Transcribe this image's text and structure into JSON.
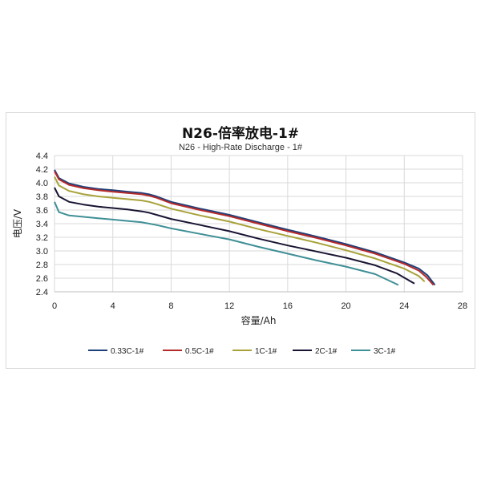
{
  "chart_data": {
    "type": "line",
    "title": "N26-倍率放电-1#",
    "subtitle": "N26 - High-Rate Discharge - 1#",
    "xlabel": "容量/Ah",
    "ylabel": "电压/V",
    "xlim": [
      0,
      28
    ],
    "ylim": [
      2.4,
      4.4
    ],
    "xticks": [
      "0",
      "4",
      "8",
      "12",
      "16",
      "20",
      "24",
      "28"
    ],
    "yticks": [
      "2.4",
      "2.6",
      "2.8",
      "3.0",
      "3.2",
      "3.4",
      "3.6",
      "3.8",
      "4.0",
      "4.2",
      "4.4"
    ],
    "grid": true,
    "legend_position": "bottom",
    "series": [
      {
        "name": "0.33C-1#",
        "color": "#1f3f7a",
        "x": [
          0,
          0.3,
          1,
          2,
          3,
          4,
          5,
          6,
          6.5,
          7,
          8,
          10,
          12,
          14,
          16,
          18,
          20,
          22,
          24,
          25,
          25.6,
          26.1
        ],
        "y": [
          4.19,
          4.07,
          3.99,
          3.94,
          3.91,
          3.89,
          3.87,
          3.85,
          3.83,
          3.8,
          3.72,
          3.62,
          3.53,
          3.42,
          3.31,
          3.21,
          3.1,
          2.98,
          2.83,
          2.74,
          2.64,
          2.5
        ]
      },
      {
        "name": "0.5C-1#",
        "color": "#b52a2a",
        "x": [
          0,
          0.3,
          1,
          2,
          3,
          4,
          5,
          6,
          6.5,
          7,
          8,
          10,
          12,
          14,
          16,
          18,
          20,
          22,
          24,
          25,
          25.5,
          26.0
        ],
        "y": [
          4.17,
          4.05,
          3.97,
          3.92,
          3.89,
          3.87,
          3.85,
          3.83,
          3.81,
          3.78,
          3.7,
          3.6,
          3.51,
          3.4,
          3.29,
          3.19,
          3.08,
          2.96,
          2.81,
          2.71,
          2.62,
          2.5
        ]
      },
      {
        "name": "1C-1#",
        "color": "#a8a23a",
        "x": [
          0,
          0.3,
          1,
          2,
          3,
          4,
          5,
          6,
          6.5,
          7,
          8,
          10,
          12,
          14,
          16,
          18,
          20,
          22,
          24,
          25,
          25.4
        ],
        "y": [
          4.09,
          3.96,
          3.88,
          3.83,
          3.8,
          3.78,
          3.76,
          3.74,
          3.72,
          3.69,
          3.62,
          3.52,
          3.43,
          3.32,
          3.22,
          3.12,
          3.01,
          2.89,
          2.74,
          2.63,
          2.55
        ]
      },
      {
        "name": "2C-1#",
        "color": "#1a1433",
        "x": [
          0,
          0.3,
          1,
          2,
          3,
          4,
          5,
          6,
          6.5,
          7,
          8,
          10,
          12,
          14,
          16,
          18,
          20,
          22,
          23.5,
          24.7
        ],
        "y": [
          3.93,
          3.8,
          3.72,
          3.68,
          3.65,
          3.63,
          3.61,
          3.58,
          3.56,
          3.53,
          3.47,
          3.38,
          3.29,
          3.18,
          3.08,
          2.99,
          2.9,
          2.79,
          2.67,
          2.52
        ]
      },
      {
        "name": "3C-1#",
        "color": "#3f8f96",
        "x": [
          0,
          0.3,
          1,
          2,
          3,
          4,
          5,
          6,
          6.5,
          7,
          8,
          10,
          12,
          14,
          16,
          18,
          20,
          22,
          23.6
        ],
        "y": [
          3.72,
          3.57,
          3.52,
          3.5,
          3.48,
          3.46,
          3.44,
          3.42,
          3.4,
          3.38,
          3.33,
          3.25,
          3.17,
          3.06,
          2.96,
          2.86,
          2.77,
          2.66,
          2.5
        ]
      }
    ]
  }
}
